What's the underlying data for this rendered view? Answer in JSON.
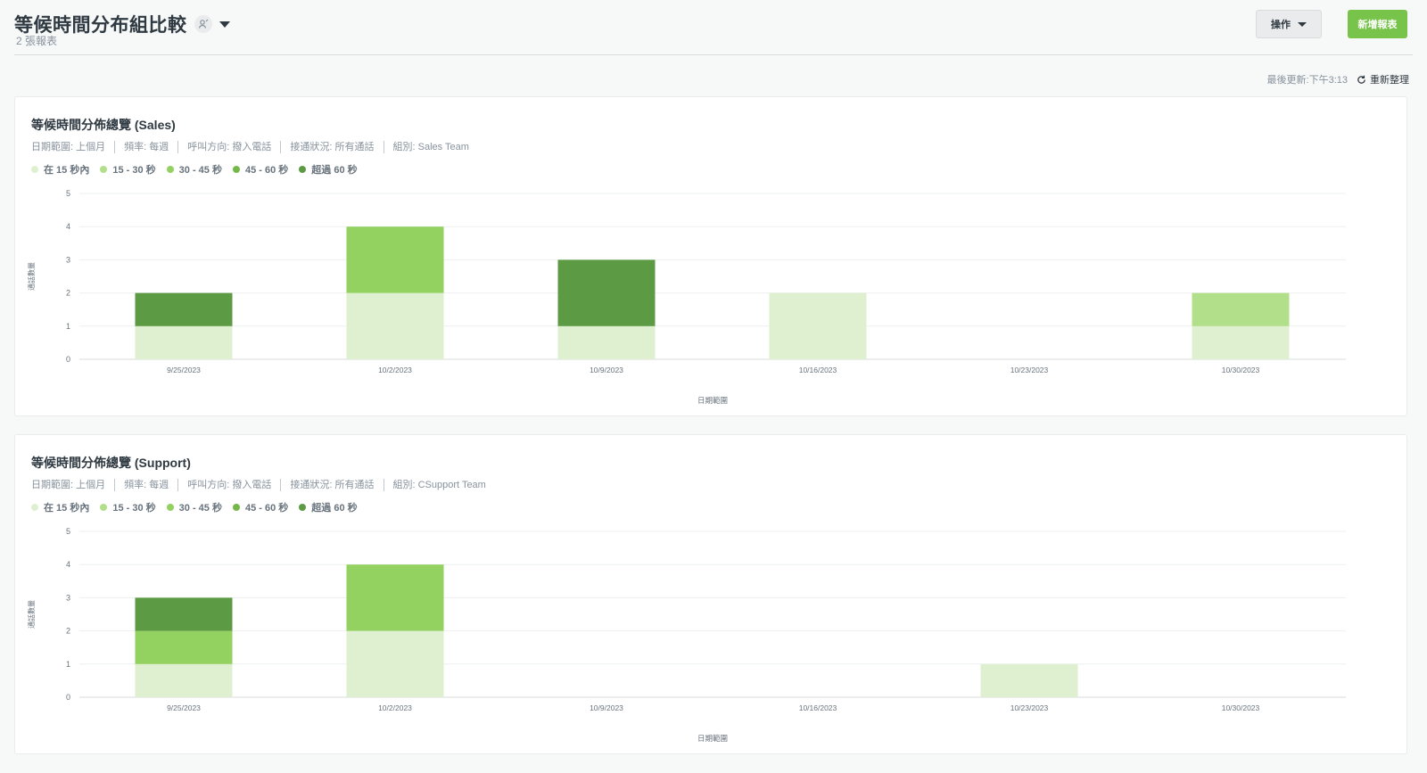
{
  "header": {
    "title": "等候時間分布組比較",
    "subtitle": "2 張報表",
    "actions_label": "操作",
    "new_report_label": "新增報表"
  },
  "refresh": {
    "last_updated": "最後更新:下午3:13",
    "refresh_label": "重新整理"
  },
  "legend": [
    {
      "label": "在 15 秒內",
      "color": "#dff0d0"
    },
    {
      "label": "15 - 30 秒",
      "color": "#b2df8a"
    },
    {
      "label": "30 - 45 秒",
      "color": "#93d161"
    },
    {
      "label": "45 - 60 秒",
      "color": "#74b84a"
    },
    {
      "label": "超過 60 秒",
      "color": "#5c9a44"
    }
  ],
  "reports": [
    {
      "title": "等候時間分佈總覽 (Sales)",
      "filters": [
        "日期範圍: 上個月",
        "頻率: 每週",
        "呼叫方向: 撥入電話",
        "接通狀況: 所有通話",
        "組別: Sales Team"
      ]
    },
    {
      "title": "等候時間分佈總覽 (Support)",
      "filters": [
        "日期範圍: 上個月",
        "頻率: 每週",
        "呼叫方向: 撥入電話",
        "接通狀況: 所有通話",
        "組別: CSupport Team"
      ]
    }
  ],
  "chart_data": [
    {
      "type": "bar",
      "stacked": true,
      "categories": [
        "9/25/2023",
        "10/2/2023",
        "10/9/2023",
        "10/16/2023",
        "10/23/2023",
        "10/30/2023"
      ],
      "series": [
        {
          "name": "在 15 秒內",
          "values": [
            1,
            2,
            1,
            2,
            0,
            1
          ]
        },
        {
          "name": "15 - 30 秒",
          "values": [
            0,
            0,
            0,
            0,
            0,
            1
          ]
        },
        {
          "name": "30 - 45 秒",
          "values": [
            0,
            2,
            0,
            0,
            0,
            0
          ]
        },
        {
          "name": "45 - 60 秒",
          "values": [
            0,
            0,
            0,
            0,
            0,
            0
          ]
        },
        {
          "name": "超過 60 秒",
          "values": [
            1,
            0,
            2,
            0,
            0,
            0
          ]
        }
      ],
      "xlabel": "日期範圍",
      "ylabel": "通話數量",
      "ylim": [
        0,
        5
      ],
      "yticks": [
        0,
        1,
        2,
        3,
        4,
        5
      ],
      "grid": true
    },
    {
      "type": "bar",
      "stacked": true,
      "categories": [
        "9/25/2023",
        "10/2/2023",
        "10/9/2023",
        "10/16/2023",
        "10/23/2023",
        "10/30/2023"
      ],
      "series": [
        {
          "name": "在 15 秒內",
          "values": [
            1,
            2,
            0,
            0,
            1,
            0
          ]
        },
        {
          "name": "15 - 30 秒",
          "values": [
            0,
            0,
            0,
            0,
            0,
            0
          ]
        },
        {
          "name": "30 - 45 秒",
          "values": [
            1,
            2,
            0,
            0,
            0,
            0
          ]
        },
        {
          "name": "45 - 60 秒",
          "values": [
            0,
            0,
            0,
            0,
            0,
            0
          ]
        },
        {
          "name": "超過 60 秒",
          "values": [
            1,
            0,
            0,
            0,
            0,
            0
          ]
        }
      ],
      "xlabel": "日期範圍",
      "ylabel": "通話數量",
      "ylim": [
        0,
        5
      ],
      "yticks": [
        0,
        1,
        2,
        3,
        4,
        5
      ],
      "grid": true
    }
  ]
}
